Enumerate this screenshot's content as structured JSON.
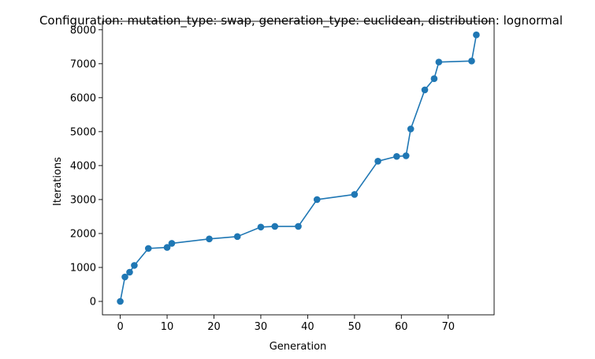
{
  "chart_data": {
    "type": "line",
    "title": "Configuration: mutation_type: swap, generation_type: euclidean, distribution: lognormal",
    "xlabel": "Generation",
    "ylabel": "Iterations",
    "xlim": [
      -3.8,
      79.8
    ],
    "ylim": [
      -395,
      8250
    ],
    "xticks": [
      0,
      10,
      20,
      30,
      40,
      50,
      60,
      70
    ],
    "yticks": [
      0,
      1000,
      2000,
      3000,
      4000,
      5000,
      6000,
      7000,
      8000
    ],
    "grid": false,
    "legend": "none",
    "series": [
      {
        "color": "#1f77b4",
        "marker": "circle",
        "x": [
          0,
          1,
          2,
          3,
          6,
          10,
          11,
          19,
          25,
          30,
          33,
          38,
          42,
          50,
          55,
          59,
          61,
          62,
          65,
          67,
          68,
          75,
          76
        ],
        "y": [
          0,
          720,
          860,
          1060,
          1560,
          1590,
          1710,
          1840,
          1910,
          2190,
          2210,
          2210,
          3000,
          3150,
          4130,
          4270,
          4290,
          5080,
          6230,
          6560,
          7050,
          7080,
          7850
        ]
      }
    ]
  }
}
